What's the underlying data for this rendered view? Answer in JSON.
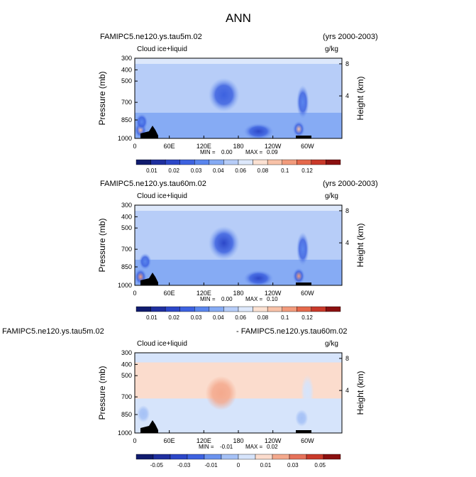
{
  "page_title": "ANN",
  "colors": {
    "background": "#ffffff",
    "terrain": "#000000",
    "positive_scale": [
      "#101b6e",
      "#1f2f9f",
      "#2c47c8",
      "#3d62e0",
      "#5a86ee",
      "#86abf4",
      "#b7cdf8",
      "#dde8fb",
      "#fbe1d2",
      "#f8c2a8",
      "#f29b7c",
      "#e5694c",
      "#c9392a",
      "#8b1010"
    ],
    "difference_scale": [
      "#101b6e",
      "#1f2f9f",
      "#2c47c8",
      "#3d62e0",
      "#6b93ef",
      "#a5c1f6",
      "#d6e4fb",
      "#fbdccd",
      "#f4a98d",
      "#e6725a",
      "#c9392a",
      "#8b1010"
    ]
  },
  "chart_data": [
    {
      "type": "heatmap",
      "title_left": "FAMIPC5.ne120.ys.tau5m.02",
      "title_right": "(yrs 2000-2003)",
      "variable": "Cloud ice+liquid",
      "units": "g/kg",
      "ylabel": "Pressure (mb)",
      "ylabel_right": "Height (km)",
      "x_ticks": [
        "0",
        "60E",
        "120E",
        "180",
        "120W",
        "60W"
      ],
      "y_ticks": [
        "300",
        "400",
        "500",
        "700",
        "850",
        "1000"
      ],
      "y_right_ticks": [
        "8",
        "4"
      ],
      "min_label": "MIN =",
      "min_value": "0.00",
      "max_label": "MAX =",
      "max_value": "0.09",
      "colorbar_labels": [
        "0.01",
        "0.02",
        "0.03",
        "0.04",
        "0.06",
        "0.08",
        "0.1",
        "0.12"
      ],
      "features": [
        {
          "lon": 10,
          "p": 880,
          "value": 0.09
        },
        {
          "lon": 12,
          "p": 780,
          "value": 0.04
        },
        {
          "lon": 155,
          "p": 520,
          "value": 0.03
        },
        {
          "lon": 285,
          "p": 870,
          "value": 0.09
        },
        {
          "lon": 292,
          "p": 580,
          "value": 0.04
        },
        {
          "lon": 215,
          "p": 900,
          "value": 0.02
        }
      ]
    },
    {
      "type": "heatmap",
      "title_left": "FAMIPC5.ne120.ys.tau60m.02",
      "title_right": "(yrs 2000-2003)",
      "variable": "Cloud ice+liquid",
      "units": "g/kg",
      "ylabel": "Pressure (mb)",
      "ylabel_right": "Height (km)",
      "x_ticks": [
        "0",
        "60E",
        "120E",
        "180",
        "120W",
        "60W"
      ],
      "y_ticks": [
        "300",
        "400",
        "500",
        "700",
        "850",
        "1000"
      ],
      "y_right_ticks": [
        "8",
        "4"
      ],
      "min_label": "MIN =",
      "min_value": "0.00",
      "max_label": "MAX =",
      "max_value": "0.10",
      "colorbar_labels": [
        "0.01",
        "0.02",
        "0.03",
        "0.04",
        "0.06",
        "0.08",
        "0.1",
        "0.12"
      ],
      "features": [
        {
          "lon": 10,
          "p": 880,
          "value": 0.1
        },
        {
          "lon": 18,
          "p": 700,
          "value": 0.04
        },
        {
          "lon": 155,
          "p": 530,
          "value": 0.02
        },
        {
          "lon": 285,
          "p": 870,
          "value": 0.1
        },
        {
          "lon": 292,
          "p": 580,
          "value": 0.04
        },
        {
          "lon": 215,
          "p": 900,
          "value": 0.02
        }
      ]
    },
    {
      "type": "heatmap",
      "title_left": "FAMIPC5.ne120.ys.tau5m.02",
      "title_right": "- FAMIPC5.ne120.ys.tau60m.02",
      "variable": "Cloud ice+liquid",
      "units": "g/kg",
      "ylabel": "Pressure (mb)",
      "ylabel_right": "Height (km)",
      "x_ticks": [
        "0",
        "60E",
        "120E",
        "180",
        "120W",
        "60W"
      ],
      "y_ticks": [
        "300",
        "400",
        "500",
        "700",
        "850",
        "1000"
      ],
      "y_right_ticks": [
        "8",
        "4"
      ],
      "min_label": "MIN =",
      "min_value": "-0.01",
      "max_label": "MAX =",
      "max_value": "0.02",
      "colorbar_labels": [
        "-0.05",
        "-0.03",
        "-0.01",
        "0",
        "0.01",
        "0.03",
        "0.05"
      ],
      "features": [
        {
          "lon": 150,
          "p": 550,
          "value": 0.02
        },
        {
          "lon": 300,
          "p": 540,
          "value": 0.01
        },
        {
          "lon": 15,
          "p": 750,
          "value": -0.01
        },
        {
          "lon": 290,
          "p": 800,
          "value": -0.01
        }
      ]
    }
  ]
}
